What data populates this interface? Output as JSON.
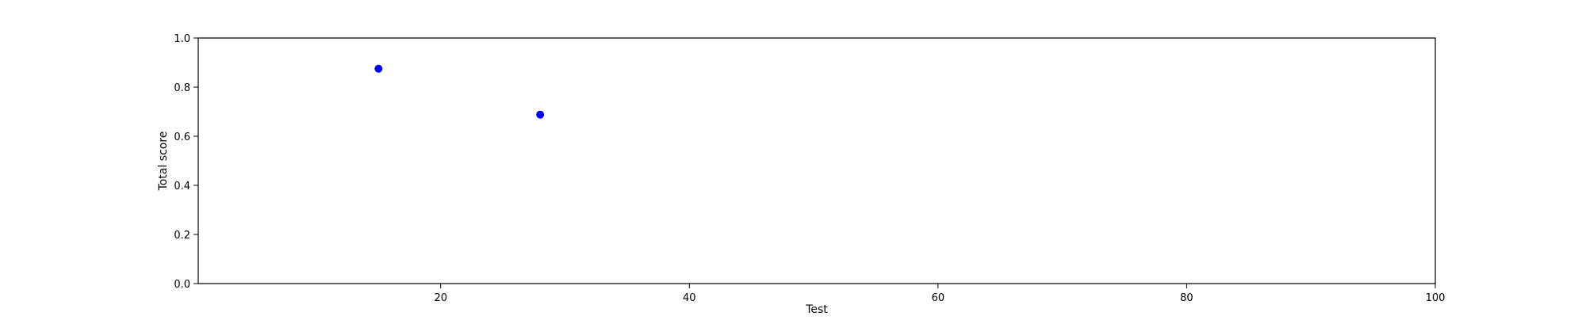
{
  "chart_data": {
    "type": "scatter",
    "title": "",
    "xlabel": "Test",
    "ylabel": "Total score",
    "xlim": [
      0.5,
      100
    ],
    "ylim": [
      0.0,
      1.0
    ],
    "xticks": [
      20,
      40,
      60,
      80,
      100
    ],
    "xtick_labels": [
      "20",
      "40",
      "60",
      "80",
      "100"
    ],
    "yticks": [
      0.0,
      0.2,
      0.4,
      0.6,
      0.8,
      1.0
    ],
    "ytick_labels": [
      "0.0",
      "0.2",
      "0.4",
      "0.6",
      "0.8",
      "1.0"
    ],
    "grid": false,
    "legend": "none",
    "series": [
      {
        "color": "#0000ff",
        "x": [
          15,
          28
        ],
        "y": [
          0.875,
          0.688
        ]
      }
    ]
  }
}
